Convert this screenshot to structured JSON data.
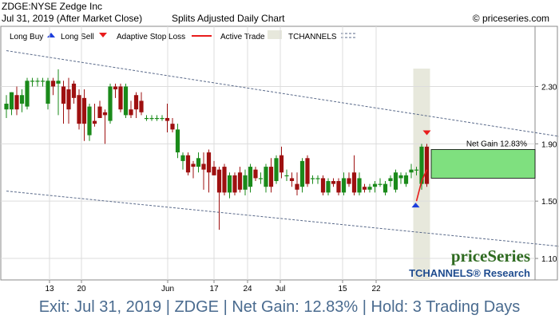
{
  "header": {
    "line1": "ZDGE:NYSE Zedge Inc",
    "line2_date": "Jul 31, 2019 (After Market Close)",
    "line2_type": "Splits Adjusted Daily Chart",
    "copyright": "© priceseries.com"
  },
  "legend": {
    "long_buy": "Long Buy",
    "long_sell": "Long Sell",
    "adaptive_stop": "Adaptive Stop Loss",
    "active_trade": "Active Trade",
    "tchannels": "TCHANNELS"
  },
  "brand": {
    "name": "priceSeries",
    "research": "TCHANNELS® Research"
  },
  "footer": {
    "text": "Exit: Jul 31, 2019 | ZDGE | Net Gain: 12.83% | Hold: 3 Trading Days"
  },
  "colors": {
    "up": "#1a8a1a",
    "down": "#9e1010",
    "stop": "#e81c1c",
    "buy": "#1b3ddc",
    "sell": "#e81c1c",
    "gain": "#7fe07f",
    "trade_band": "#e7e8dc",
    "channel": "#5a6a8a"
  },
  "chart_data": {
    "type": "candlestick",
    "x_tick_labels": [
      "13",
      "20",
      "Jun",
      "17",
      "24",
      "Jul",
      "15",
      "22"
    ],
    "y_tick_labels": [
      "2.30",
      "1.90",
      "1.50",
      "1.10"
    ],
    "ylim": [
      0.95,
      2.72
    ],
    "gain_label": "Net Gain 12.83%",
    "gain_box": [
      1.66,
      1.86
    ],
    "entry_price": 1.66,
    "channel_upper": [
      [
        0,
        2.55
      ],
      [
        130,
        1.82
      ]
    ],
    "channel_lower": [
      [
        0,
        1.57
      ],
      [
        130,
        1.1
      ]
    ],
    "candles": [
      {
        "o": 2.14,
        "h": 2.24,
        "l": 2.08,
        "c": 2.18
      },
      {
        "o": 2.14,
        "h": 2.26,
        "l": 2.1,
        "c": 2.26
      },
      {
        "o": 2.24,
        "h": 2.3,
        "l": 2.1,
        "c": 2.14
      },
      {
        "o": 2.18,
        "h": 2.28,
        "l": 2.12,
        "c": 2.24
      },
      {
        "o": 2.16,
        "h": 2.36,
        "l": 2.14,
        "c": 2.34
      },
      {
        "o": 2.34,
        "h": 2.36,
        "l": 2.3,
        "c": 2.34
      },
      {
        "o": 2.34,
        "h": 2.36,
        "l": 2.3,
        "c": 2.34
      },
      {
        "o": 2.34,
        "h": 2.36,
        "l": 2.3,
        "c": 2.34
      },
      {
        "o": 2.18,
        "h": 2.36,
        "l": 2.14,
        "c": 2.34
      },
      {
        "o": 2.34,
        "h": 2.36,
        "l": 2.24,
        "c": 2.3
      },
      {
        "o": 2.32,
        "h": 2.42,
        "l": 2.1,
        "c": 2.34
      },
      {
        "o": 2.3,
        "h": 2.34,
        "l": 2.04,
        "c": 2.18
      },
      {
        "o": 2.28,
        "h": 2.36,
        "l": 2.04,
        "c": 2.14
      },
      {
        "o": 2.32,
        "h": 2.34,
        "l": 2.18,
        "c": 2.22
      },
      {
        "o": 2.24,
        "h": 2.28,
        "l": 2.0,
        "c": 2.04
      },
      {
        "o": 2.22,
        "h": 2.28,
        "l": 1.92,
        "c": 2.04
      },
      {
        "o": 1.96,
        "h": 2.18,
        "l": 1.92,
        "c": 2.16
      },
      {
        "o": 2.06,
        "h": 2.18,
        "l": 2.02,
        "c": 2.04
      },
      {
        "o": 2.16,
        "h": 2.2,
        "l": 2.08,
        "c": 2.08
      },
      {
        "o": 2.12,
        "h": 2.14,
        "l": 1.9,
        "c": 2.1
      },
      {
        "o": 2.06,
        "h": 2.32,
        "l": 2.04,
        "c": 2.3
      },
      {
        "o": 2.3,
        "h": 2.32,
        "l": 2.22,
        "c": 2.28
      },
      {
        "o": 2.3,
        "h": 2.32,
        "l": 2.12,
        "c": 2.14
      },
      {
        "o": 2.1,
        "h": 2.32,
        "l": 2.08,
        "c": 2.3
      },
      {
        "o": 2.14,
        "h": 2.2,
        "l": 2.08,
        "c": 2.1
      },
      {
        "o": 2.24,
        "h": 2.26,
        "l": 2.08,
        "c": 2.14
      },
      {
        "o": 2.2,
        "h": 2.26,
        "l": 2.1,
        "c": 2.12
      },
      {
        "o": 2.08,
        "h": 2.1,
        "l": 2.06,
        "c": 2.08
      },
      {
        "o": 2.08,
        "h": 2.1,
        "l": 2.06,
        "c": 2.08
      },
      {
        "o": 2.08,
        "h": 2.1,
        "l": 2.06,
        "c": 2.08
      },
      {
        "o": 2.08,
        "h": 2.1,
        "l": 2.06,
        "c": 2.08
      },
      {
        "o": 2.08,
        "h": 2.18,
        "l": 1.98,
        "c": 2.06
      },
      {
        "o": 2.04,
        "h": 2.08,
        "l": 1.98,
        "c": 2.0
      },
      {
        "o": 1.84,
        "h": 2.04,
        "l": 1.8,
        "c": 2.0
      },
      {
        "o": 1.78,
        "h": 1.84,
        "l": 1.72,
        "c": 1.82
      },
      {
        "o": 1.82,
        "h": 1.84,
        "l": 1.68,
        "c": 1.7
      },
      {
        "o": 1.76,
        "h": 1.78,
        "l": 1.66,
        "c": 1.74
      },
      {
        "o": 1.74,
        "h": 1.84,
        "l": 1.7,
        "c": 1.8
      },
      {
        "o": 1.76,
        "h": 1.84,
        "l": 1.58,
        "c": 1.72
      },
      {
        "o": 1.84,
        "h": 1.86,
        "l": 1.56,
        "c": 1.7
      },
      {
        "o": 1.74,
        "h": 1.78,
        "l": 1.68,
        "c": 1.68
      },
      {
        "o": 1.72,
        "h": 1.74,
        "l": 1.3,
        "c": 1.56
      },
      {
        "o": 1.74,
        "h": 1.76,
        "l": 1.54,
        "c": 1.56
      },
      {
        "o": 1.56,
        "h": 1.7,
        "l": 1.52,
        "c": 1.68
      },
      {
        "o": 1.68,
        "h": 1.7,
        "l": 1.54,
        "c": 1.56
      },
      {
        "o": 1.7,
        "h": 1.74,
        "l": 1.56,
        "c": 1.58
      },
      {
        "o": 1.58,
        "h": 1.72,
        "l": 1.54,
        "c": 1.68
      },
      {
        "o": 1.6,
        "h": 1.76,
        "l": 1.56,
        "c": 1.74
      },
      {
        "o": 1.72,
        "h": 1.74,
        "l": 1.64,
        "c": 1.66
      },
      {
        "o": 1.66,
        "h": 1.7,
        "l": 1.62,
        "c": 1.66
      },
      {
        "o": 1.6,
        "h": 1.76,
        "l": 1.56,
        "c": 1.74
      },
      {
        "o": 1.74,
        "h": 1.8,
        "l": 1.56,
        "c": 1.6
      },
      {
        "o": 1.64,
        "h": 1.82,
        "l": 1.62,
        "c": 1.8
      },
      {
        "o": 1.82,
        "h": 1.88,
        "l": 1.66,
        "c": 1.7
      },
      {
        "o": 1.68,
        "h": 1.72,
        "l": 1.64,
        "c": 1.68
      },
      {
        "o": 1.66,
        "h": 1.7,
        "l": 1.6,
        "c": 1.64
      },
      {
        "o": 1.62,
        "h": 1.7,
        "l": 1.54,
        "c": 1.58
      },
      {
        "o": 1.6,
        "h": 1.8,
        "l": 1.56,
        "c": 1.78
      },
      {
        "o": 1.8,
        "h": 1.82,
        "l": 1.6,
        "c": 1.62
      },
      {
        "o": 1.66,
        "h": 1.68,
        "l": 1.62,
        "c": 1.66
      },
      {
        "o": 1.66,
        "h": 1.68,
        "l": 1.62,
        "c": 1.66
      },
      {
        "o": 1.66,
        "h": 1.68,
        "l": 1.54,
        "c": 1.56
      },
      {
        "o": 1.56,
        "h": 1.66,
        "l": 1.54,
        "c": 1.64
      },
      {
        "o": 1.64,
        "h": 1.66,
        "l": 1.6,
        "c": 1.62
      },
      {
        "o": 1.64,
        "h": 1.66,
        "l": 1.54,
        "c": 1.56
      },
      {
        "o": 1.56,
        "h": 1.7,
        "l": 1.54,
        "c": 1.66
      },
      {
        "o": 1.66,
        "h": 1.7,
        "l": 1.6,
        "c": 1.62
      },
      {
        "o": 1.7,
        "h": 1.82,
        "l": 1.54,
        "c": 1.56
      },
      {
        "o": 1.56,
        "h": 1.7,
        "l": 1.54,
        "c": 1.66
      },
      {
        "o": 1.6,
        "h": 1.62,
        "l": 1.56,
        "c": 1.58
      },
      {
        "o": 1.58,
        "h": 1.62,
        "l": 1.56,
        "c": 1.6
      },
      {
        "o": 1.6,
        "h": 1.64,
        "l": 1.56,
        "c": 1.62
      },
      {
        "o": 1.62,
        "h": 1.66,
        "l": 1.6,
        "c": 1.62
      },
      {
        "o": 1.56,
        "h": 1.64,
        "l": 1.54,
        "c": 1.62
      },
      {
        "o": 1.64,
        "h": 1.68,
        "l": 1.6,
        "c": 1.66
      },
      {
        "o": 1.58,
        "h": 1.72,
        "l": 1.56,
        "c": 1.7
      },
      {
        "o": 1.66,
        "h": 1.7,
        "l": 1.62,
        "c": 1.68
      },
      {
        "o": 1.62,
        "h": 1.7,
        "l": 1.6,
        "c": 1.68
      },
      {
        "o": 1.7,
        "h": 1.76,
        "l": 1.66,
        "c": 1.72
      },
      {
        "o": 1.72,
        "h": 1.74,
        "l": 1.68,
        "c": 1.72
      },
      {
        "o": 1.62,
        "h": 1.9,
        "l": 1.58,
        "c": 1.88
      },
      {
        "o": 1.88,
        "h": 1.9,
        "l": 1.6,
        "c": 1.62
      }
    ],
    "trade": {
      "start": 79,
      "end": 81
    },
    "buy_marker": {
      "index": 79,
      "price": 1.5
    },
    "sell_marker": {
      "index": 81,
      "price": 1.96
    },
    "stop_loss": [
      [
        79,
        1.5
      ],
      [
        80,
        1.64
      ],
      [
        81,
        1.72
      ]
    ]
  }
}
